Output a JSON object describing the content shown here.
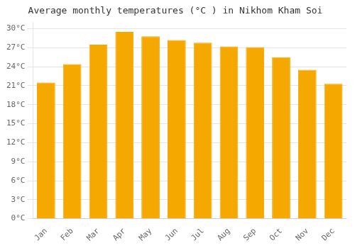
{
  "chart_data": {
    "type": "bar",
    "title": "Average monthly temperatures (°C ) in Nikhom Kham Soi",
    "categories": [
      "Jan",
      "Feb",
      "Mar",
      "Apr",
      "May",
      "Jun",
      "Jul",
      "Aug",
      "Sep",
      "Oct",
      "Nov",
      "Dec"
    ],
    "values": [
      21.5,
      24.4,
      27.5,
      29.5,
      28.8,
      28.2,
      27.8,
      27.2,
      27.1,
      25.5,
      23.5,
      21.3
    ],
    "color": "#F5A800",
    "ylim": [
      0,
      31
    ],
    "yticks": [
      {
        "value": 0,
        "label": "0°C"
      },
      {
        "value": 3,
        "label": "3°C"
      },
      {
        "value": 6,
        "label": "6°C"
      },
      {
        "value": 9,
        "label": "9°C"
      },
      {
        "value": 12,
        "label": "12°C"
      },
      {
        "value": 15,
        "label": "15°C"
      },
      {
        "value": 18,
        "label": "18°C"
      },
      {
        "value": 21,
        "label": "21°C"
      },
      {
        "value": 24,
        "label": "24°C"
      },
      {
        "value": 27,
        "label": "27°C"
      },
      {
        "value": 30,
        "label": "30°C"
      }
    ],
    "grid": true
  }
}
